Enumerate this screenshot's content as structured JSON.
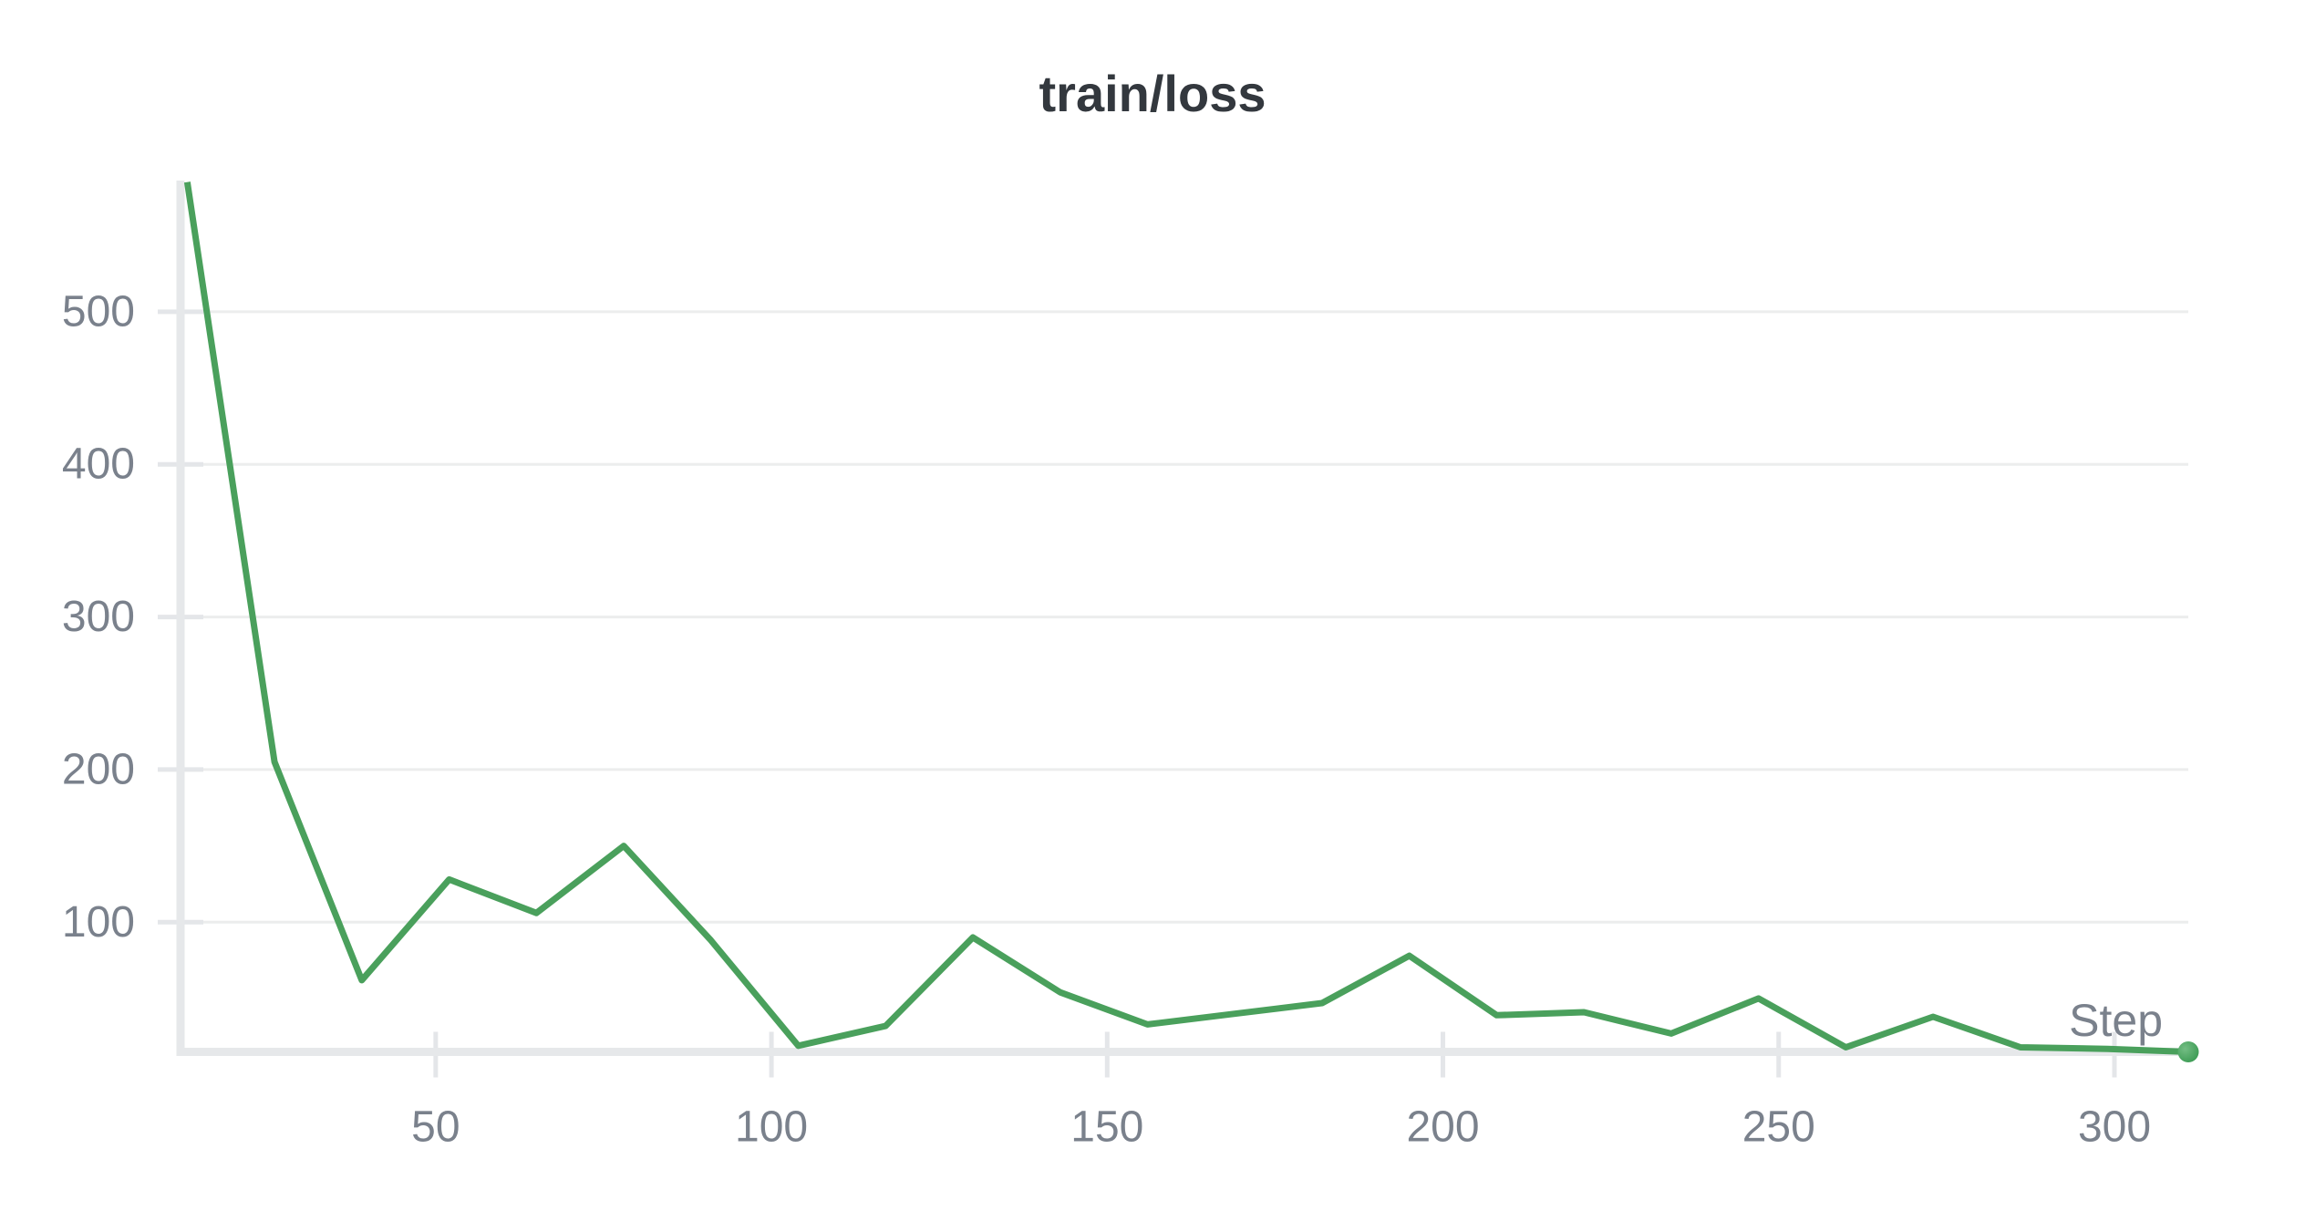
{
  "chart_data": {
    "type": "line",
    "title": "train/loss",
    "xlabel": "Step",
    "ylabel": "",
    "x_ticks": [
      50,
      100,
      150,
      200,
      250,
      300
    ],
    "y_ticks": [
      100,
      200,
      300,
      400,
      500
    ],
    "xlim": [
      12,
      311
    ],
    "ylim": [
      15,
      586
    ],
    "grid": "horizontal-only",
    "legend": "none",
    "series": [
      {
        "name": "train/loss",
        "x": [
          13,
          26,
          39,
          52,
          65,
          78,
          91,
          104,
          117,
          130,
          143,
          156,
          169,
          182,
          195,
          208,
          221,
          234,
          247,
          260,
          273,
          286,
          299,
          311
        ],
        "y": [
          585,
          205,
          62,
          128,
          106,
          150,
          88,
          19,
          32,
          90,
          54,
          33,
          40,
          47,
          78,
          39,
          41,
          27,
          50,
          18,
          38,
          18,
          17,
          15
        ],
        "end_marker": "dot"
      }
    ]
  },
  "colors": {
    "line": "#4aa05c",
    "dot_edge": "#3a9a52",
    "dot_highlight": "#74bd84",
    "grid": "#eceded",
    "tick": "#e4e6e9",
    "axis_bar": "#e6e8ea",
    "tick_label": "#7a818c",
    "title": "#33383e"
  }
}
